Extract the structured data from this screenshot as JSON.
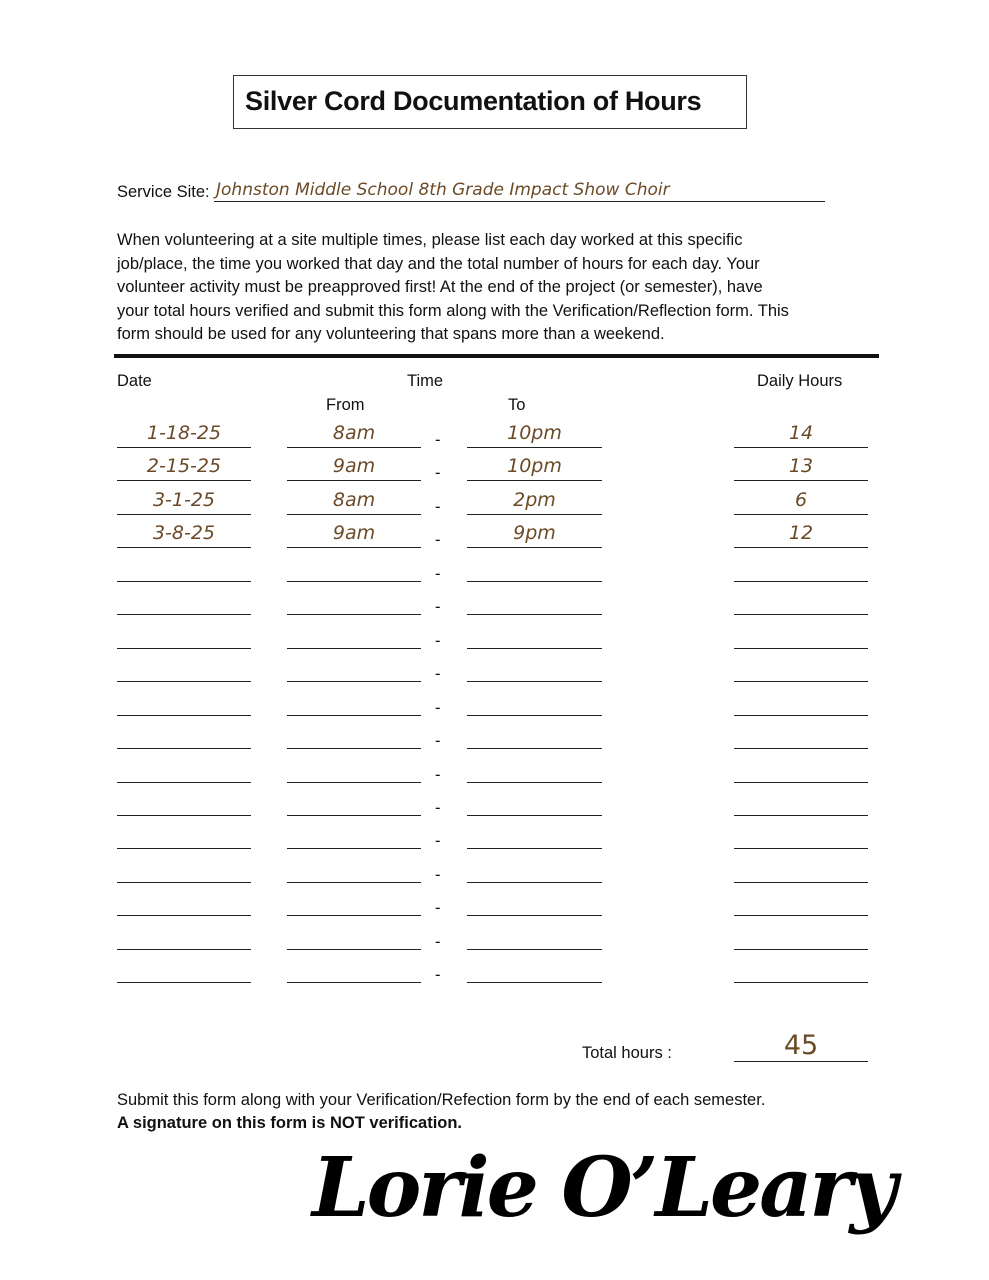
{
  "title": "Silver Cord Documentation of Hours",
  "service_site": {
    "label": "Service Site:",
    "value": "Johnston Middle School 8th Grade Impact Show Choir"
  },
  "instructions": [
    "When volunteering at a site multiple times, please list each day worked at this specific",
    "job/place, the time you worked that day and the total number of hours for each day. Your",
    "volunteer activity must be preapproved first!   At the end of the project (or semester), have",
    "your total hours verified and submit this form along with the Verification/Reflection form.  This",
    "form should be used for any volunteering that spans more than a weekend."
  ],
  "headers": {
    "date": "Date",
    "time": "Time",
    "from": "From",
    "to": "To",
    "daily_hours": "Daily Hours"
  },
  "separator": "-",
  "rows": [
    {
      "date": "1-18-25",
      "from": "8am",
      "to": "10pm",
      "hours": "14"
    },
    {
      "date": "2-15-25",
      "from": "9am",
      "to": "10pm",
      "hours": "13"
    },
    {
      "date": "3-1-25",
      "from": "8am",
      "to": "2pm",
      "hours": "6"
    },
    {
      "date": "3-8-25",
      "from": "9am",
      "to": "9pm",
      "hours": "12"
    },
    {
      "date": "",
      "from": "",
      "to": "",
      "hours": ""
    },
    {
      "date": "",
      "from": "",
      "to": "",
      "hours": ""
    },
    {
      "date": "",
      "from": "",
      "to": "",
      "hours": ""
    },
    {
      "date": "",
      "from": "",
      "to": "",
      "hours": ""
    },
    {
      "date": "",
      "from": "",
      "to": "",
      "hours": ""
    },
    {
      "date": "",
      "from": "",
      "to": "",
      "hours": ""
    },
    {
      "date": "",
      "from": "",
      "to": "",
      "hours": ""
    },
    {
      "date": "",
      "from": "",
      "to": "",
      "hours": ""
    },
    {
      "date": "",
      "from": "",
      "to": "",
      "hours": ""
    },
    {
      "date": "",
      "from": "",
      "to": "",
      "hours": ""
    },
    {
      "date": "",
      "from": "",
      "to": "",
      "hours": ""
    },
    {
      "date": "",
      "from": "",
      "to": "",
      "hours": ""
    },
    {
      "date": "",
      "from": "",
      "to": "",
      "hours": ""
    }
  ],
  "total": {
    "label": "Total hours :",
    "value": "45"
  },
  "footer": {
    "submit_note": "Submit this form along with your Verification/Refection form by the end of each semester.",
    "warning": "A signature on this form is NOT verification."
  },
  "signature": "Lorie O'Leary",
  "colors": {
    "ink": "#6b4a28",
    "text": "#111111"
  }
}
